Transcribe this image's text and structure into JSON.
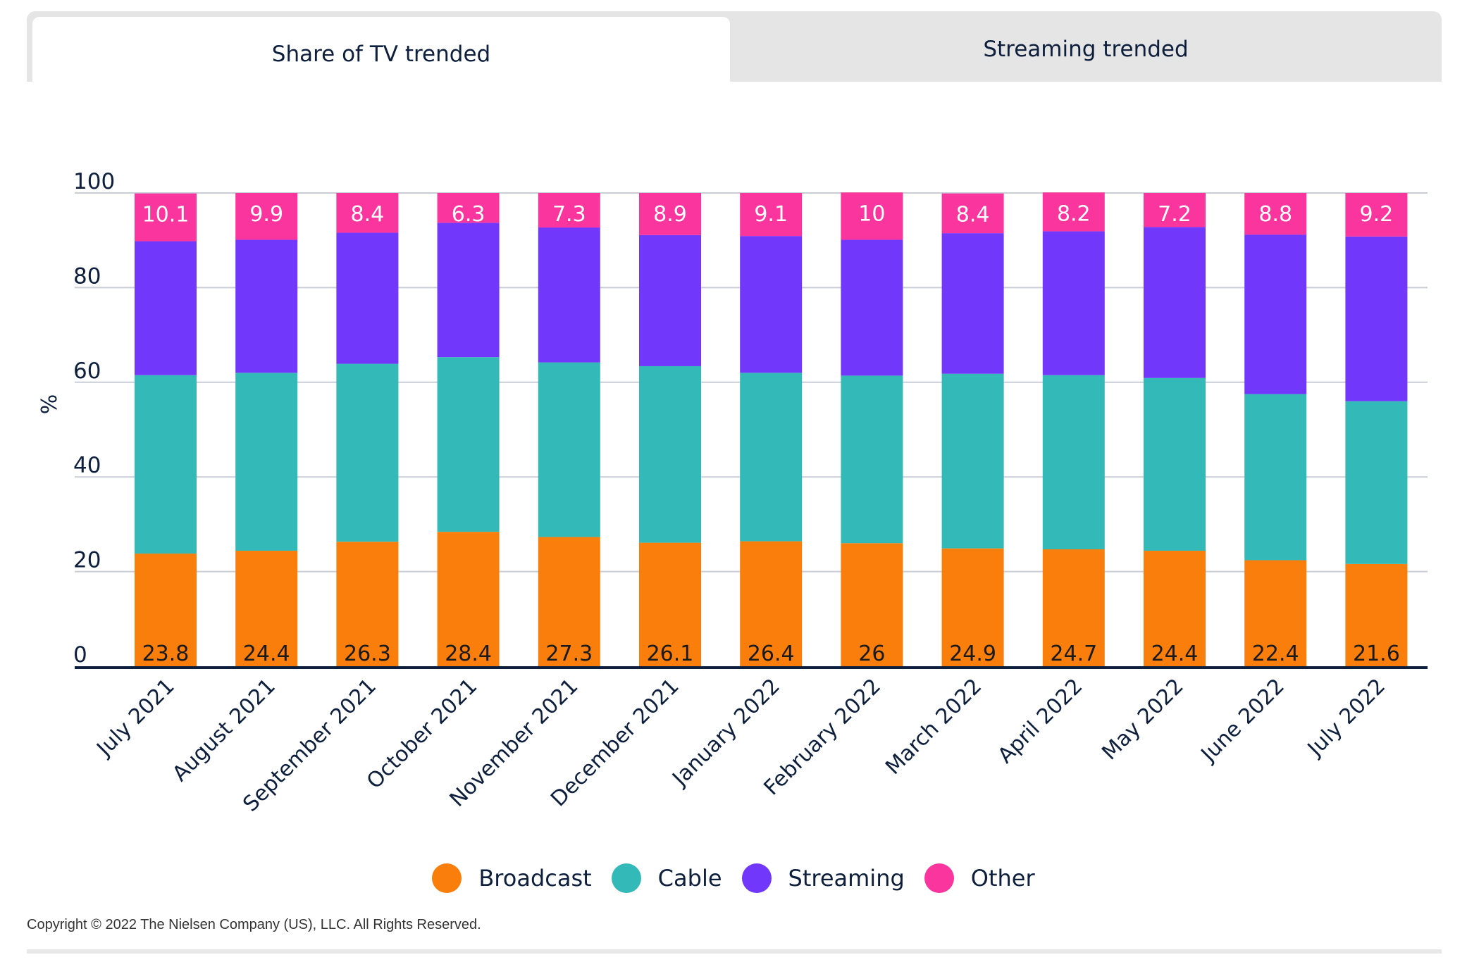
{
  "tabs": [
    {
      "label": "Share of TV trended",
      "active": true
    },
    {
      "label": "Streaming trended",
      "active": false
    }
  ],
  "colors": {
    "Broadcast": "#f97e0b",
    "Cable": "#33b9b7",
    "Streaming": "#7137fb",
    "Other": "#fb359e",
    "text_dark": "#0d1f3c",
    "grid": "#c8cdd6",
    "axis": "#0d1f3c"
  },
  "chart_data": {
    "type": "bar",
    "stacked": true,
    "title": "",
    "xlabel": "",
    "ylabel": "%",
    "ylim": [
      0,
      100
    ],
    "yticks": [
      0,
      20,
      40,
      60,
      80,
      100
    ],
    "grid": true,
    "legend_position": "bottom",
    "categories": [
      "July 2021",
      "August 2021",
      "September 2021",
      "October 2021",
      "November 2021",
      "December 2021",
      "January 2022",
      "February 2022",
      "March 2022",
      "April 2022",
      "May 2022",
      "June 2022",
      "July 2022"
    ],
    "series": [
      {
        "name": "Broadcast",
        "values": [
          23.8,
          24.4,
          26.3,
          28.4,
          27.3,
          26.1,
          26.4,
          26,
          24.9,
          24.7,
          24.4,
          22.4,
          21.6
        ]
      },
      {
        "name": "Cable",
        "values": [
          37.7,
          37.6,
          37.6,
          36.9,
          36.9,
          37.3,
          35.6,
          35.4,
          36.9,
          36.8,
          36.5,
          35.1,
          34.4
        ]
      },
      {
        "name": "Streaming",
        "values": [
          28.3,
          28.1,
          27.7,
          28.4,
          28.5,
          27.7,
          28.9,
          28.7,
          29.7,
          30.4,
          31.9,
          33.7,
          34.8
        ]
      },
      {
        "name": "Other",
        "values": [
          10.1,
          9.9,
          8.4,
          6.3,
          7.3,
          8.9,
          9.1,
          10,
          8.4,
          8.2,
          7.2,
          8.8,
          9.2
        ]
      }
    ]
  },
  "legend": [
    {
      "label": "Broadcast"
    },
    {
      "label": "Cable"
    },
    {
      "label": "Streaming"
    },
    {
      "label": "Other"
    }
  ],
  "footer": {
    "copyright": "Copyright © 2022 The Nielsen Company (US), LLC. All Rights Reserved."
  }
}
